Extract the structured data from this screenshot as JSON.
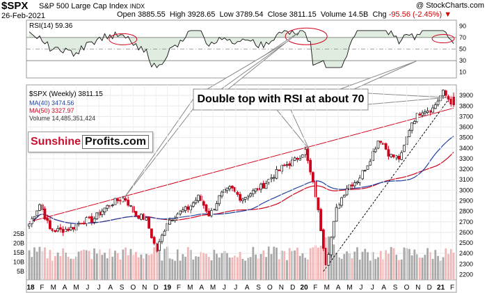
{
  "header": {
    "symbol": "$SPX",
    "name": "S&P 500 Large Cap Index",
    "exchange": "INDX",
    "date": "26-Feb-2021",
    "open_label": "Open",
    "open": "3885.55",
    "high_label": "High",
    "high": "3928.65",
    "low_label": "Low",
    "low": "3789.54",
    "close_label": "Close",
    "close": "3811.15",
    "volume_label": "Volume",
    "volume": "14.5B",
    "chg_label": "Chg",
    "chg": "-95.56 (-2.45%)",
    "chg_arrow": "▼",
    "watermark": "@ StockCharts.com"
  },
  "rsi": {
    "label": "RSI(14)",
    "value": "59.36",
    "levels": [
      "90",
      "70",
      "50",
      "30",
      "10"
    ],
    "overbought": 70,
    "oversold": 30
  },
  "legend": {
    "price_label": "$SPX (Weekly) 3811.15",
    "ma40_label": "MA(40) 3474.56",
    "ma50_label": "MA(50) 3327.97",
    "volume_label": "Volume 14,485,351,424"
  },
  "brand": {
    "part1": "Sunshine",
    "part2": "Profits.com"
  },
  "annotation": "Double top with RSI at about 70",
  "colors": {
    "up": "#222222",
    "down": "#d0021b",
    "ma40": "#1f3fa0",
    "ma50": "#d0021b",
    "trendline": "#d0021b",
    "rsi_fill": "#2e7d32",
    "vol_up": "#a8a8a8",
    "vol_down": "#f2b6b6",
    "circle": "#d0021b"
  },
  "chart_data": {
    "type": "candlestick",
    "timeframe": "weekly",
    "price_axis": {
      "ylim": [
        2150,
        4000
      ],
      "ticks": [
        2200,
        2300,
        2400,
        2500,
        2600,
        2700,
        2800,
        2900,
        3000,
        3100,
        3200,
        3300,
        3400,
        3500,
        3600,
        3700,
        3800,
        3900
      ]
    },
    "volume_axis": {
      "ticks": [
        "5B",
        "10B",
        "15B",
        "20B",
        "25B"
      ]
    },
    "x_ticks": [
      "18",
      "F",
      "M",
      "A",
      "M",
      "J",
      "J",
      "A",
      "S",
      "O",
      "N",
      "D",
      "19",
      "F",
      "M",
      "A",
      "M",
      "J",
      "J",
      "A",
      "S",
      "O",
      "N",
      "D",
      "20",
      "F",
      "M",
      "A",
      "M",
      "J",
      "J",
      "A",
      "S",
      "O",
      "N",
      "D",
      "21",
      "F"
    ],
    "anchors": [
      {
        "date": "2018-01",
        "close": 2680
      },
      {
        "date": "2018-01-end",
        "close": 2870
      },
      {
        "date": "2018-02",
        "close": 2620
      },
      {
        "date": "2018-03",
        "close": 2620
      },
      {
        "date": "2018-04",
        "close": 2640
      },
      {
        "date": "2018-05",
        "close": 2710
      },
      {
        "date": "2018-06",
        "close": 2720
      },
      {
        "date": "2018-07",
        "close": 2820
      },
      {
        "date": "2018-08",
        "close": 2890
      },
      {
        "date": "2018-09",
        "close": 2930
      },
      {
        "date": "2018-10",
        "close": 2770
      },
      {
        "date": "2018-11",
        "close": 2730
      },
      {
        "date": "2018-12",
        "close": 2420
      },
      {
        "date": "2019-01",
        "close": 2700
      },
      {
        "date": "2019-02",
        "close": 2780
      },
      {
        "date": "2019-03",
        "close": 2830
      },
      {
        "date": "2019-04",
        "close": 2940
      },
      {
        "date": "2019-05",
        "close": 2760
      },
      {
        "date": "2019-06",
        "close": 2950
      },
      {
        "date": "2019-07",
        "close": 3020
      },
      {
        "date": "2019-08",
        "close": 2920
      },
      {
        "date": "2019-09",
        "close": 2980
      },
      {
        "date": "2019-10",
        "close": 3040
      },
      {
        "date": "2019-11",
        "close": 3140
      },
      {
        "date": "2019-12",
        "close": 3230
      },
      {
        "date": "2020-01",
        "close": 3280
      },
      {
        "date": "2020-02",
        "close": 3380
      },
      {
        "date": "2020-02-end",
        "close": 2950
      },
      {
        "date": "2020-03",
        "close": 2300
      },
      {
        "date": "2020-04",
        "close": 2840
      },
      {
        "date": "2020-05",
        "close": 3040
      },
      {
        "date": "2020-06",
        "close": 3100
      },
      {
        "date": "2020-07",
        "close": 3270
      },
      {
        "date": "2020-08",
        "close": 3500
      },
      {
        "date": "2020-09",
        "close": 3330
      },
      {
        "date": "2020-10",
        "close": 3300
      },
      {
        "date": "2020-11",
        "close": 3640
      },
      {
        "date": "2020-12",
        "close": 3760
      },
      {
        "date": "2021-01",
        "close": 3770
      },
      {
        "date": "2021-02",
        "close": 3930
      },
      {
        "date": "2021-02-26",
        "close": 3811
      }
    ]
  }
}
